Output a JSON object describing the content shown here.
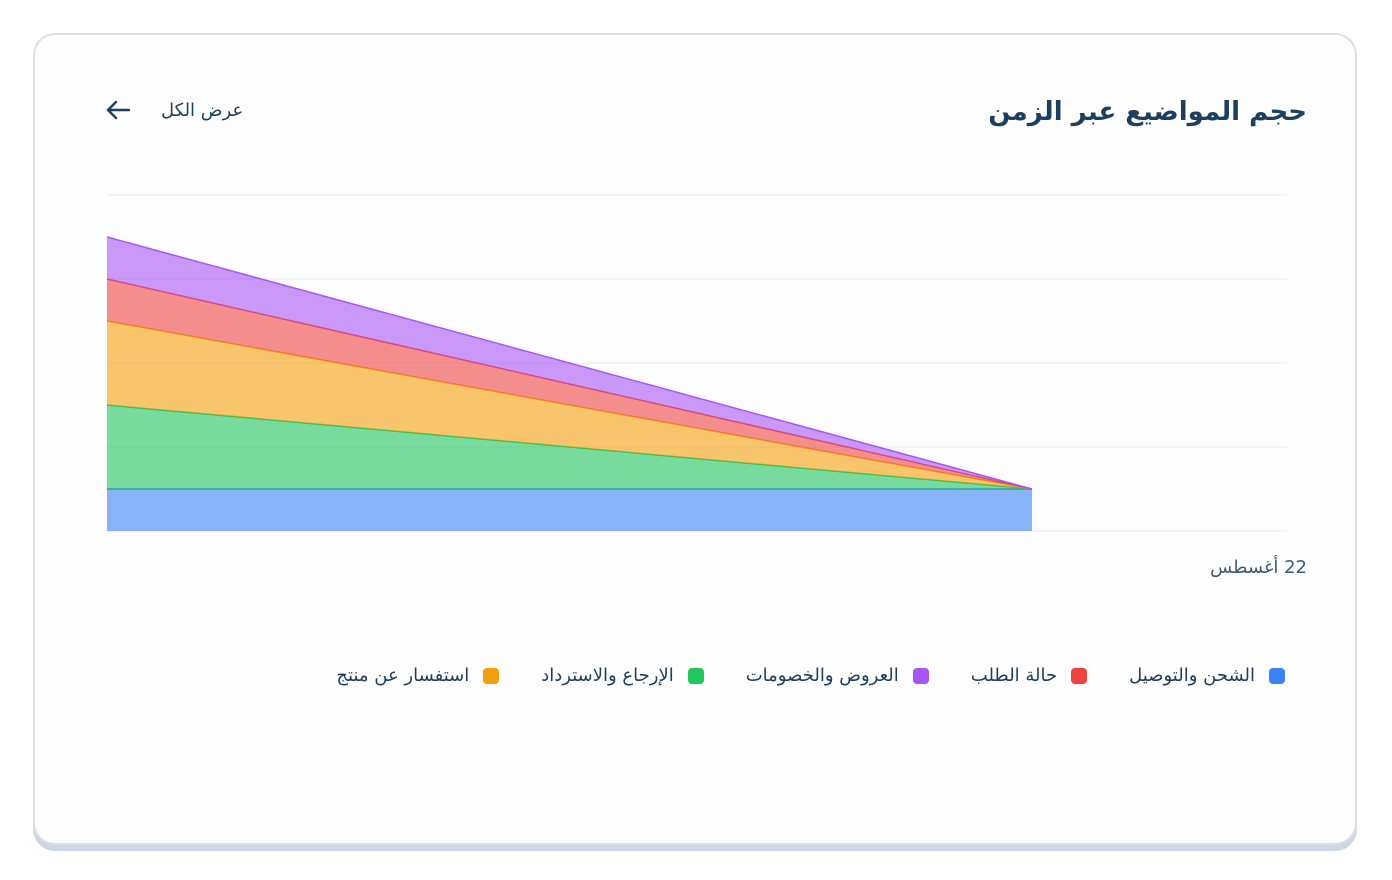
{
  "card": {
    "title": "حجم المواضيع عبر الزمن",
    "view_all_label": "عرض الكل",
    "arrow_icon": "arrow-left-icon"
  },
  "chart_data": {
    "type": "area",
    "stacked": true,
    "title": "حجم المواضيع عبر الزمن",
    "x": [
      0,
      1
    ],
    "x_tick_labels": [
      "22 أغسطس"
    ],
    "y_range": [
      0,
      8
    ],
    "y_ticks": [
      0,
      2,
      4,
      6,
      8
    ],
    "grid": true,
    "legend_position": "bottom",
    "series": [
      {
        "name": "الشحن والتوصيل",
        "color": "#3b82f6",
        "values": [
          1,
          1
        ]
      },
      {
        "name": "الإرجاع والاسترداد",
        "color": "#22c55e",
        "values": [
          2,
          0
        ]
      },
      {
        "name": "استفسار عن منتج",
        "color": "#f59e0b",
        "values": [
          2,
          0
        ]
      },
      {
        "name": "حالة الطلب",
        "color": "#ef4444",
        "values": [
          1,
          0
        ]
      },
      {
        "name": "العروض والخصومات",
        "color": "#a855f7",
        "values": [
          1,
          0
        ]
      }
    ],
    "legend_order": [
      0,
      3,
      4,
      1,
      2
    ]
  }
}
